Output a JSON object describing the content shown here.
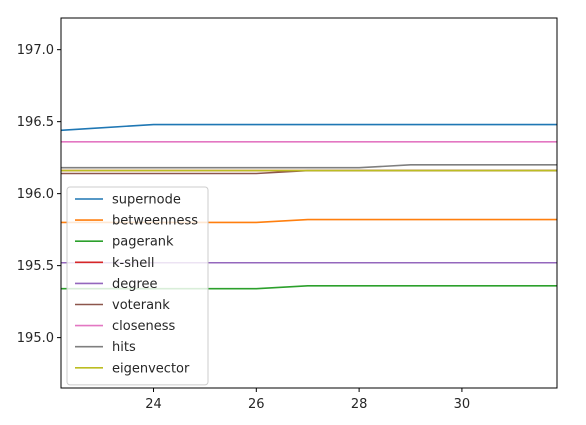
{
  "chart_data": {
    "type": "line",
    "title": "",
    "xlabel": "",
    "ylabel": "",
    "xlim": [
      22.2,
      31.85
    ],
    "ylim": [
      194.65,
      197.22
    ],
    "xticks": [
      24,
      26,
      28,
      30
    ],
    "xtick_labels": [
      "24",
      "26",
      "28",
      "30"
    ],
    "yticks": [
      195.0,
      195.5,
      196.0,
      196.5,
      197.0
    ],
    "ytick_labels": [
      "195.0",
      "195.5",
      "196.0",
      "196.5",
      "197.0"
    ],
    "grid": false,
    "legend_position": "lower-left",
    "series": [
      {
        "name": "supernode",
        "color": "#1f77b4",
        "x": [
          22.2,
          24,
          31.85
        ],
        "y": [
          196.44,
          196.48,
          196.48
        ]
      },
      {
        "name": "betweenness",
        "color": "#ff7f0e",
        "x": [
          22.2,
          26,
          27,
          31.85
        ],
        "y": [
          195.8,
          195.8,
          195.82,
          195.82
        ]
      },
      {
        "name": "pagerank",
        "color": "#2ca02c",
        "x": [
          22.2,
          26,
          27,
          31.85
        ],
        "y": [
          195.34,
          195.34,
          195.36,
          195.36
        ]
      },
      {
        "name": "k-shell",
        "color": "#d62728",
        "x": [
          22.2,
          31.85
        ],
        "y": [
          196.16,
          196.16
        ]
      },
      {
        "name": "degree",
        "color": "#9467bd",
        "x": [
          22.2,
          31.85
        ],
        "y": [
          195.52,
          195.52
        ]
      },
      {
        "name": "voterank",
        "color": "#8c564b",
        "x": [
          22.2,
          26,
          27,
          31.85
        ],
        "y": [
          196.14,
          196.14,
          196.16,
          196.16
        ]
      },
      {
        "name": "closeness",
        "color": "#e377c2",
        "x": [
          22.2,
          31.85
        ],
        "y": [
          196.36,
          196.36
        ]
      },
      {
        "name": "hits",
        "color": "#7f7f7f",
        "x": [
          22.2,
          28,
          29,
          31.85
        ],
        "y": [
          196.18,
          196.18,
          196.2,
          196.2
        ]
      },
      {
        "name": "eigenvector",
        "color": "#bcbd22",
        "x": [
          22.2,
          31.85
        ],
        "y": [
          196.16,
          196.16
        ]
      }
    ]
  }
}
